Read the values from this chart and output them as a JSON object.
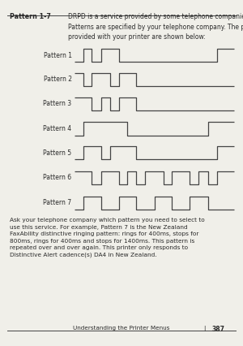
{
  "bg_color": "#f0efe9",
  "text_color": "#2a2a2a",
  "line_color": "#444444",
  "header_label": "Pattern 1-7",
  "header_text": "DRPD is a service provided by some telephone companies. DRPD\nPatterns are specified by your telephone company. The patterns\nprovided with your printer are shown below:",
  "footer_text": "Understanding the Printer Menus",
  "footer_sep": "|",
  "footer_page": "387",
  "body_text": "Ask your telephone company which pattern you need to select to\nuse this service. For example, Pattern 7 is the New Zealand\nFaxAbility distinctive ringing pattern: rings for 400ms, stops for\n800ms, rings for 400ms and stops for 1400ms. This pattern is\nrepeated over and over again. This printer only responds to\nDistinctive Alert cadence(s) DA4 in New Zealand.",
  "patterns": [
    {
      "name": "Pattern 1",
      "signal": [
        0,
        1,
        0,
        1,
        1,
        0,
        0,
        0,
        0,
        0,
        0,
        0,
        0,
        0,
        0,
        0,
        1,
        1
      ]
    },
    {
      "name": "Pattern 2",
      "signal": [
        1,
        0,
        1,
        1,
        0,
        1,
        1,
        0,
        0,
        0,
        0,
        0,
        0,
        0,
        0,
        0,
        0,
        0
      ]
    },
    {
      "name": "Pattern 3",
      "signal": [
        1,
        1,
        0,
        1,
        0,
        1,
        1,
        0,
        0,
        0,
        0,
        0,
        0,
        0,
        0,
        0,
        0,
        0
      ]
    },
    {
      "name": "Pattern 4",
      "signal": [
        0,
        1,
        1,
        1,
        1,
        1,
        0,
        0,
        0,
        0,
        0,
        0,
        0,
        0,
        0,
        1,
        1,
        1
      ]
    },
    {
      "name": "Pattern 5",
      "signal": [
        0,
        1,
        1,
        0,
        1,
        1,
        1,
        0,
        0,
        0,
        0,
        0,
        0,
        0,
        0,
        0,
        1,
        1
      ]
    },
    {
      "name": "Pattern 6",
      "signal": [
        1,
        1,
        0,
        1,
        1,
        0,
        1,
        0,
        1,
        1,
        0,
        1,
        1,
        0,
        1,
        0,
        1,
        1
      ]
    },
    {
      "name": "Pattern 7",
      "signal": [
        0,
        1,
        1,
        0,
        0,
        1,
        1,
        0,
        0,
        1,
        1,
        0,
        0,
        1,
        1,
        0,
        0,
        0
      ]
    }
  ]
}
